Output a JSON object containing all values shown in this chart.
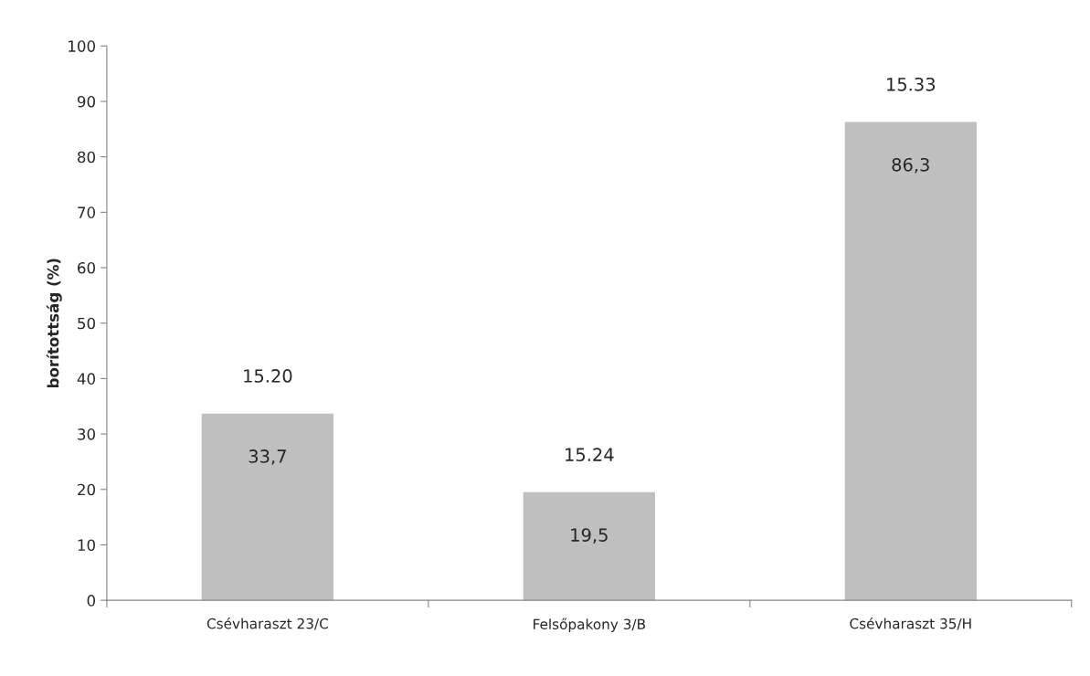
{
  "chart_data": {
    "type": "bar",
    "ylabel": "borítottság (%)",
    "categories": [
      "Csévharaszt 23/C",
      "Felsőpakony 3/B",
      "Csévharaszt 35/H"
    ],
    "values": [
      33.7,
      19.5,
      86.3
    ],
    "value_labels": [
      "33,7",
      "19,5",
      "86,3"
    ],
    "color": "#bfbfbf",
    "ylim": [
      0,
      100
    ],
    "yticks": [
      0,
      10,
      20,
      30,
      40,
      50,
      60,
      70,
      80,
      90,
      100
    ],
    "grid": false,
    "legend": false,
    "annotations": [
      "15.20",
      "15.24",
      "15.33"
    ]
  }
}
